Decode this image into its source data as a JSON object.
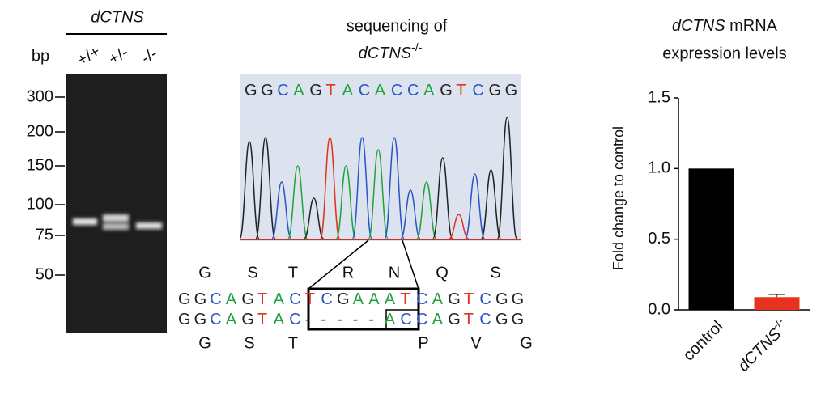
{
  "gel": {
    "title": "dCTNS",
    "unit": "bp",
    "lanes": [
      "+/+",
      "+/-",
      "-/-"
    ],
    "ladder": [
      300,
      200,
      150,
      100,
      75,
      50
    ]
  },
  "sequencing": {
    "title": "sequencing of",
    "genotype": "dCTNS",
    "genotype_sup": "-/-",
    "read": "GGCAGTACACCAGTCGG",
    "base_colors": {
      "G": "#222222",
      "C": "#2a55c8",
      "A": "#1fa33a",
      "T": "#e0321e",
      "-": "#222222"
    },
    "wt_aa": [
      "G",
      "S",
      "T",
      "R",
      "N",
      "Q",
      "S"
    ],
    "wt_seq": "GGCAGTACTCGAAATCAGTCGG",
    "mut_seq": "GGCAGTAC-----ACCAGTCGG",
    "mut_aa": [
      "G",
      "S",
      "T",
      "P",
      "V",
      "G"
    ]
  },
  "chart_data": {
    "type": "bar",
    "title": "dCTNS",
    "title_rest": "mRNA",
    "subtitle": "expression levels",
    "ylabel": "Fold change to control",
    "categories": [
      {
        "text": "control"
      },
      {
        "text": "dCTNS",
        "sup": "-/-"
      }
    ],
    "values": [
      1.0,
      0.09
    ],
    "errors": [
      null,
      0.02
    ],
    "colors": [
      "#000000",
      "#e8321e"
    ],
    "ylim": [
      0,
      1.5
    ],
    "yticks": [
      {
        "value": 0,
        "label": "0.0"
      },
      0.5,
      {
        "value": 1,
        "label": "1.0"
      },
      1.5
    ]
  }
}
